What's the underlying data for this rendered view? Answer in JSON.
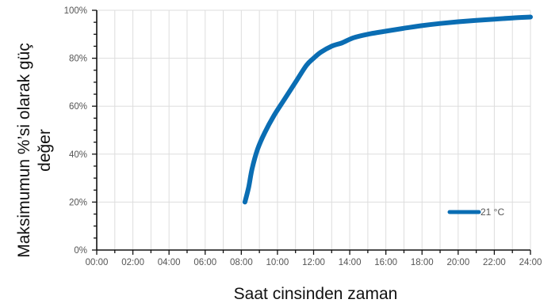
{
  "chart_data": {
    "type": "line",
    "title": "",
    "xlabel": "Saat cinsinden zaman",
    "ylabel_line1": "Maksimumun %’si olarak güç",
    "ylabel_line2": "değer",
    "x_ticks": [
      "00:00",
      "02:00",
      "04:00",
      "06:00",
      "08:00",
      "10:00",
      "12:00",
      "14:00",
      "16:00",
      "18:00",
      "20:00",
      "22:00",
      "24:00"
    ],
    "y_ticks": [
      "0%",
      "20%",
      "40%",
      "60%",
      "80%",
      "100%"
    ],
    "xlim": [
      0,
      24
    ],
    "ylim": [
      0,
      100
    ],
    "grid": true,
    "legend_position": "bottom-right",
    "series": [
      {
        "name": "21 °C",
        "color": "#0a6db3",
        "x": [
          8.2,
          8.4,
          8.6,
          8.9,
          9.3,
          9.8,
          10.4,
          11.0,
          11.6,
          12.0,
          12.4,
          13.0,
          13.6,
          14.2,
          15.0,
          16.0,
          17.0,
          18.0,
          19.0,
          20.0,
          21.0,
          22.0,
          23.0,
          24.0
        ],
        "y": [
          20,
          26,
          34,
          42,
          49,
          56,
          63,
          70,
          77,
          80,
          82.5,
          85,
          86.5,
          88.5,
          90,
          91.3,
          92.5,
          93.6,
          94.5,
          95.2,
          95.8,
          96.3,
          96.8,
          97.2
        ]
      }
    ]
  }
}
